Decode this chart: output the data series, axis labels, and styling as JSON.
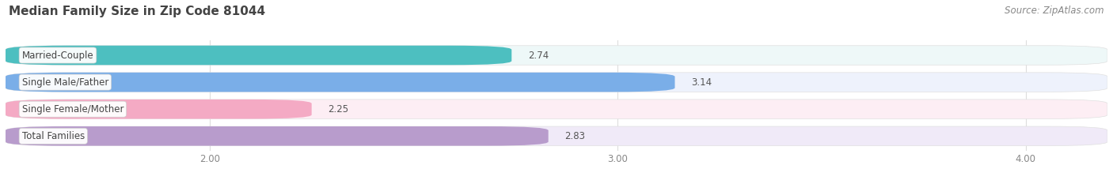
{
  "title": "Median Family Size in Zip Code 81044",
  "source": "Source: ZipAtlas.com",
  "categories": [
    "Married-Couple",
    "Single Male/Father",
    "Single Female/Mother",
    "Total Families"
  ],
  "values": [
    2.74,
    3.14,
    2.25,
    2.83
  ],
  "bar_colors": [
    "#4dbfc0",
    "#7aaee8",
    "#f4aac4",
    "#b89ccc"
  ],
  "bar_bg_colors": [
    "#eef8f8",
    "#eef2fc",
    "#fdeef4",
    "#f0eaf8"
  ],
  "xlim": [
    1.5,
    4.2
  ],
  "xstart": 1.5,
  "xticks": [
    2.0,
    3.0,
    4.0
  ],
  "xtick_labels": [
    "2.00",
    "3.00",
    "4.00"
  ],
  "background_color": "#ffffff",
  "title_fontsize": 11,
  "label_fontsize": 8.5,
  "value_fontsize": 8.5,
  "source_fontsize": 8.5
}
